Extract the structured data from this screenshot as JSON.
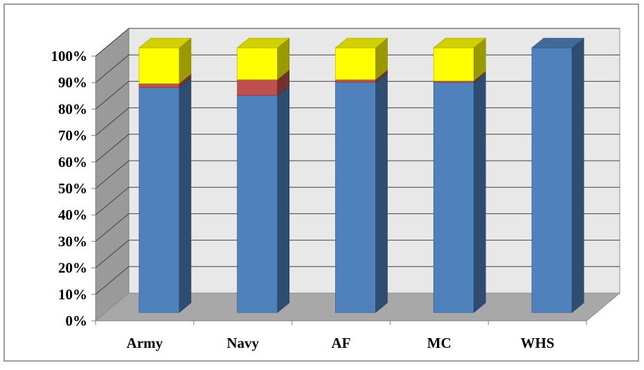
{
  "chart_data": {
    "type": "bar",
    "stacked": true,
    "percent_stacked": true,
    "three_d": true,
    "title": "",
    "xlabel": "",
    "ylabel": "",
    "categories": [
      "Army",
      "Navy",
      "AF",
      "MC",
      "WHS"
    ],
    "series": [
      {
        "color": "#4F81BD",
        "values": [
          85,
          82,
          87,
          87,
          100
        ]
      },
      {
        "color": "#C0504D",
        "values": [
          1.5,
          6,
          1,
          0.5,
          0
        ]
      },
      {
        "color": "#FFFF00",
        "values": [
          13.5,
          12,
          12,
          12.5,
          0
        ]
      }
    ],
    "ylim": [
      0,
      100
    ],
    "yticks": [
      "0%",
      "10%",
      "20%",
      "30%",
      "40%",
      "50%",
      "60%",
      "70%",
      "80%",
      "90%",
      "100%"
    ],
    "grid": true,
    "legend": "none",
    "colors": {
      "wall": "#E8E8E8",
      "side_wall": "#9A9A9A",
      "floor": "#A8A8A8",
      "gridline": "#404040",
      "border": "#7F7F7F"
    }
  }
}
